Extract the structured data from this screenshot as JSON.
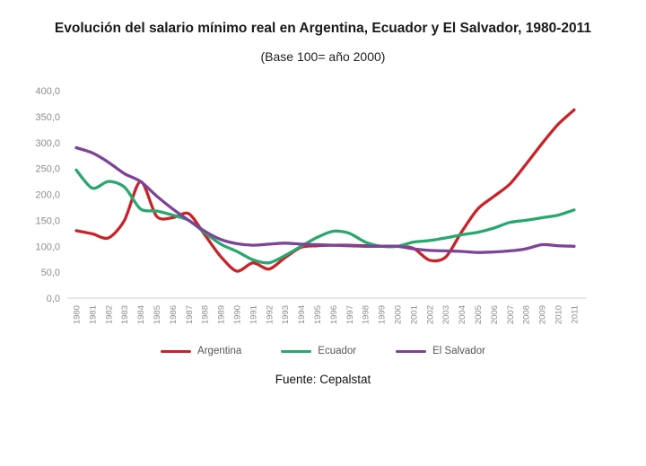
{
  "page": {
    "title": "Evolución del salario mínimo real en Argentina, Ecuador y El Salvador, 1980-2011",
    "subtitle": "(Base 100= año 2000)",
    "source": "Fuente: Cepalstat"
  },
  "colors": {
    "argentina": "#c82329",
    "ecuador": "#28a86e",
    "el_salvador": "#7d4397",
    "axis_line": "#d9d9d9",
    "tick_text": "#8c8c8c"
  },
  "legend": [
    {
      "label": "Argentina",
      "color": "#c82329"
    },
    {
      "label": "Ecuador",
      "color": "#28a86e"
    },
    {
      "label": "El Salvador",
      "color": "#7d4397"
    }
  ],
  "axis": {
    "y_tick_values": [
      0,
      50,
      100,
      150,
      200,
      250,
      300,
      350,
      400
    ],
    "y_tick_labels": [
      "0,0",
      "50,0",
      "100,0",
      "150,0",
      "200,0",
      "250,0",
      "300,0",
      "350,0",
      "400,0"
    ],
    "x_tick_labels": [
      "1980",
      "1981",
      "1982",
      "1983",
      "1984",
      "1985",
      "1986",
      "1987",
      "1988",
      "1989",
      "1990",
      "1991",
      "1992",
      "1993",
      "1994",
      "1995",
      "1996",
      "1997",
      "1998",
      "1999",
      "2000",
      "2001",
      "2002",
      "2003",
      "2004",
      "2005",
      "2006",
      "2007",
      "2008",
      "2009",
      "2010",
      "2011"
    ]
  },
  "chart_data": {
    "type": "line",
    "title": "Evolución del salario mínimo real en Argentina, Ecuador y El Salvador, 1980-2011",
    "subtitle": "(Base 100= año 2000)",
    "xlabel": "",
    "ylabel": "",
    "ylim": [
      0,
      400
    ],
    "grid": false,
    "legend_position": "bottom",
    "x": [
      1980,
      1981,
      1982,
      1983,
      1984,
      1985,
      1986,
      1987,
      1988,
      1989,
      1990,
      1991,
      1992,
      1993,
      1994,
      1995,
      1996,
      1997,
      1998,
      1999,
      2000,
      2001,
      2002,
      2003,
      2004,
      2005,
      2006,
      2007,
      2008,
      2009,
      2010,
      2011
    ],
    "series": [
      {
        "name": "Argentina",
        "color": "#c82329",
        "values": [
          130,
          124,
          116,
          150,
          225,
          158,
          155,
          163,
          122,
          80,
          52,
          68,
          56,
          78,
          98,
          101,
          102,
          102,
          101,
          100,
          100,
          96,
          73,
          79,
          128,
          172,
          196,
          220,
          258,
          298,
          335,
          363
        ]
      },
      {
        "name": "Ecuador",
        "color": "#28a86e",
        "values": [
          247,
          212,
          225,
          214,
          172,
          168,
          160,
          150,
          126,
          104,
          90,
          74,
          68,
          82,
          100,
          117,
          129,
          125,
          108,
          100,
          100,
          108,
          111,
          116,
          122,
          127,
          135,
          146,
          150,
          155,
          160,
          170
        ]
      },
      {
        "name": "El Salvador",
        "color": "#7d4397",
        "values": [
          290,
          280,
          262,
          240,
          225,
          197,
          172,
          150,
          129,
          113,
          105,
          102,
          104,
          106,
          104,
          103,
          102,
          101,
          100,
          100,
          100,
          95,
          92,
          91,
          90,
          88,
          89,
          91,
          95,
          103,
          101,
          100
        ]
      }
    ]
  }
}
